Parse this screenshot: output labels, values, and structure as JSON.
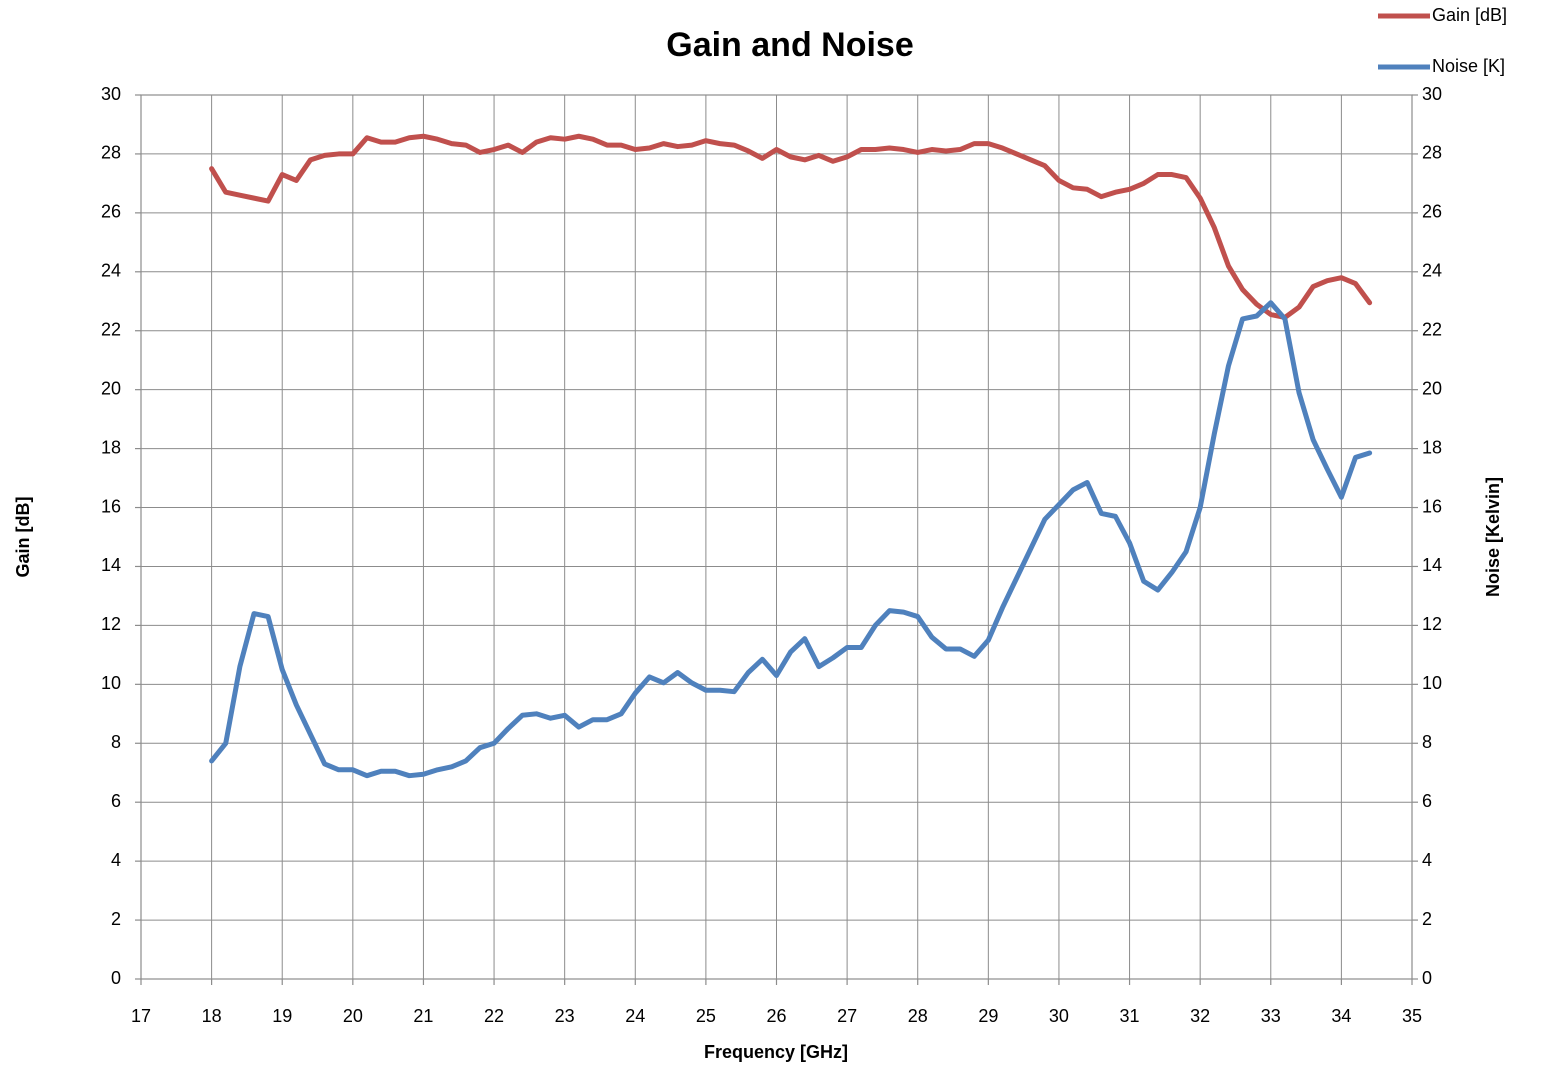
{
  "chart_data": {
    "type": "line",
    "title": "Gain and Noise",
    "xlabel": "Frequency [GHz]",
    "ylabel": "Gain [dB]",
    "y2label": "Noise [Kelvin]",
    "xlim": [
      17,
      35
    ],
    "xticks": [
      17,
      18,
      19,
      20,
      21,
      22,
      23,
      24,
      25,
      26,
      27,
      28,
      29,
      30,
      31,
      32,
      33,
      34,
      35
    ],
    "ylim": [
      0,
      30
    ],
    "yticks": [
      0,
      2,
      4,
      6,
      8,
      10,
      12,
      14,
      16,
      18,
      20,
      22,
      24,
      26,
      28,
      30
    ],
    "y2lim": [
      0,
      30
    ],
    "y2ticks": [
      0,
      2,
      4,
      6,
      8,
      10,
      12,
      14,
      16,
      18,
      20,
      22,
      24,
      26,
      28,
      30
    ],
    "grid": true,
    "legend": "top-right",
    "x": [
      18,
      18.2,
      18.4,
      18.6,
      18.8,
      19,
      19.2,
      19.4,
      19.6,
      19.8,
      20,
      20.2,
      20.4,
      20.6,
      20.8,
      21,
      21.2,
      21.4,
      21.6,
      21.8,
      22,
      22.2,
      22.4,
      22.6,
      22.8,
      23,
      23.2,
      23.4,
      23.6,
      23.8,
      24,
      24.2,
      24.4,
      24.6,
      24.8,
      25,
      25.2,
      25.4,
      25.6,
      25.8,
      26,
      26.2,
      26.4,
      26.6,
      26.8,
      27,
      27.2,
      27.4,
      27.6,
      27.8,
      28,
      28.2,
      28.4,
      28.6,
      28.8,
      29,
      29.2,
      29.4,
      29.6,
      29.8,
      30,
      30.2,
      30.4,
      30.6,
      30.8,
      31,
      31.2,
      31.4,
      31.6,
      31.8,
      32,
      32.2,
      32.4,
      32.6,
      32.8,
      33,
      33.2,
      33.4,
      33.6,
      33.8,
      34,
      34.2,
      34.4
    ],
    "series": [
      {
        "name": "Gain [dB]",
        "color": "#c0504d",
        "values": [
          27.5,
          26.7,
          26.6,
          26.5,
          26.4,
          27.3,
          27.1,
          27.8,
          27.95,
          28,
          28,
          28.55,
          28.4,
          28.4,
          28.55,
          28.6,
          28.5,
          28.35,
          28.3,
          28.05,
          28.15,
          28.3,
          28.05,
          28.4,
          28.55,
          28.5,
          28.6,
          28.5,
          28.3,
          28.3,
          28.15,
          28.2,
          28.35,
          28.25,
          28.3,
          28.45,
          28.35,
          28.3,
          28.1,
          27.85,
          28.15,
          27.9,
          27.8,
          27.95,
          27.75,
          27.9,
          28.15,
          28.15,
          28.2,
          28.15,
          28.05,
          28.15,
          28.1,
          28.15,
          28.35,
          28.35,
          28.2,
          28,
          27.8,
          27.6,
          27.1,
          26.85,
          26.8,
          26.55,
          26.7,
          26.8,
          27,
          27.3,
          27.3,
          27.2,
          26.5,
          25.5,
          24.2,
          23.4,
          22.9,
          22.55,
          22.45,
          22.8,
          23.5,
          23.7,
          23.8,
          23.6,
          22.95
        ]
      },
      {
        "name": "Noise [K]",
        "color": "#4f81bd",
        "axis": "y2",
        "values": [
          7.4,
          8,
          10.6,
          12.4,
          12.3,
          10.5,
          9.3,
          8.3,
          7.3,
          7.1,
          7.1,
          6.9,
          7.05,
          7.05,
          6.9,
          6.95,
          7.1,
          7.2,
          7.4,
          7.85,
          8,
          8.5,
          8.95,
          9,
          8.85,
          8.95,
          8.55,
          8.8,
          8.8,
          9,
          9.7,
          10.25,
          10.05,
          10.4,
          10.05,
          9.8,
          9.8,
          9.75,
          10.4,
          10.85,
          10.3,
          11.1,
          11.55,
          10.6,
          10.9,
          11.25,
          11.25,
          12,
          12.5,
          12.45,
          12.3,
          11.6,
          11.2,
          11.2,
          10.95,
          11.5,
          12.6,
          13.6,
          14.6,
          15.6,
          16.1,
          16.6,
          16.85,
          15.8,
          15.7,
          14.8,
          13.5,
          13.2,
          13.8,
          14.5,
          16,
          18.5,
          20.8,
          22.4,
          22.5,
          22.95,
          22.4,
          19.9,
          18.3,
          17.3,
          16.35,
          17.7,
          17.85
        ]
      }
    ]
  }
}
